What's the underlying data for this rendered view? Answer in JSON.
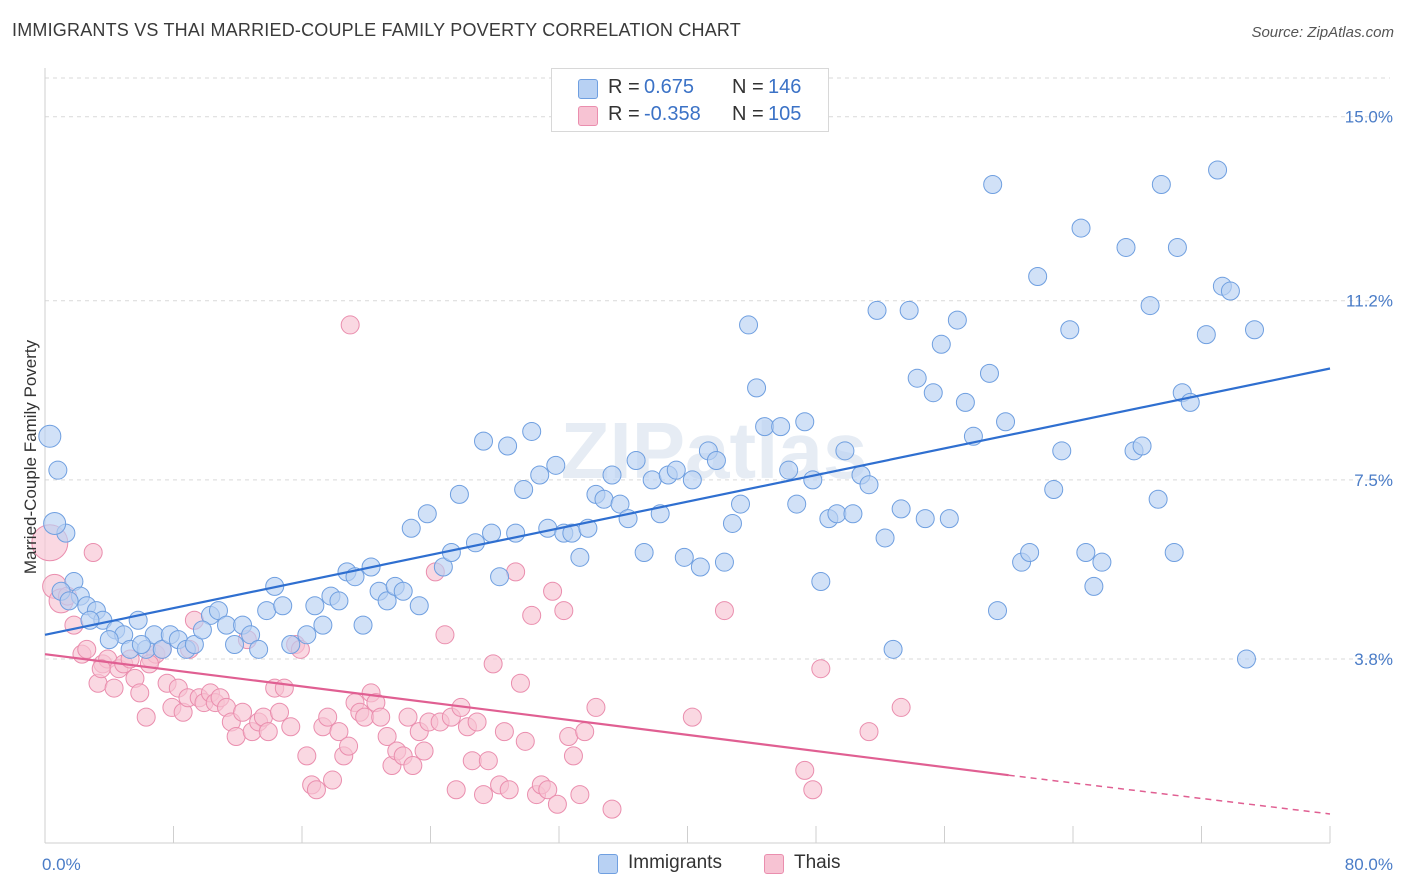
{
  "title": "IMMIGRANTS VS THAI MARRIED-COUPLE FAMILY POVERTY CORRELATION CHART",
  "source": "Source: ZipAtlas.com",
  "watermark": "ZIPatlas",
  "legend": {
    "rows": [
      {
        "r_label": "R =",
        "r_value": "0.675",
        "n_label": "N =",
        "n_value": "146"
      },
      {
        "r_label": "R =",
        "r_value": "-0.358",
        "n_label": "N =",
        "n_value": "105"
      }
    ]
  },
  "colors": {
    "immigrants_fill": "#b8d1f3",
    "immigrants_stroke": "#6f9fe0",
    "immigrants_line": "#2f6fd0",
    "thais_fill": "#f7c3d3",
    "thais_stroke": "#ea8eae",
    "thais_line": "#e05f92",
    "tick_text": "#4a7cc7",
    "grid": "#d9d9d9"
  },
  "chart_data": {
    "type": "scatter",
    "xlabel": "",
    "ylabel": "Married-Couple Family Poverty",
    "xlim": [
      0,
      80
    ],
    "ylim": [
      0,
      15.8
    ],
    "x_tick_labels": [
      "0.0%",
      "80.0%"
    ],
    "y_ticks": [
      {
        "value": 3.8,
        "label": "3.8%"
      },
      {
        "value": 7.5,
        "label": "7.5%"
      },
      {
        "value": 11.2,
        "label": "11.2%"
      },
      {
        "value": 15.0,
        "label": "15.0%"
      }
    ],
    "legend_position": "top-center",
    "series": [
      {
        "name": "Immigrants",
        "trend": {
          "x": [
            0,
            80
          ],
          "y": [
            4.3,
            9.8
          ]
        },
        "points": [
          [
            0.3,
            8.4
          ],
          [
            0.8,
            7.7
          ],
          [
            1.3,
            6.4
          ],
          [
            1.8,
            5.4
          ],
          [
            2.2,
            5.1
          ],
          [
            2.6,
            4.9
          ],
          [
            3.2,
            4.8
          ],
          [
            3.6,
            4.6
          ],
          [
            4.4,
            4.4
          ],
          [
            4.9,
            4.3
          ],
          [
            5.3,
            4.0
          ],
          [
            5.8,
            4.6
          ],
          [
            6.3,
            4.0
          ],
          [
            6.8,
            4.3
          ],
          [
            7.3,
            4.0
          ],
          [
            7.8,
            4.3
          ],
          [
            8.3,
            4.2
          ],
          [
            8.8,
            4.0
          ],
          [
            9.3,
            4.1
          ],
          [
            10.3,
            4.7
          ],
          [
            10.8,
            4.8
          ],
          [
            11.3,
            4.5
          ],
          [
            11.8,
            4.1
          ],
          [
            12.3,
            4.5
          ],
          [
            12.8,
            4.3
          ],
          [
            13.3,
            4.0
          ],
          [
            13.8,
            4.8
          ],
          [
            14.3,
            5.3
          ],
          [
            14.8,
            4.9
          ],
          [
            15.3,
            4.1
          ],
          [
            16.3,
            4.3
          ],
          [
            16.8,
            4.9
          ],
          [
            17.3,
            4.5
          ],
          [
            17.8,
            5.1
          ],
          [
            18.3,
            5.0
          ],
          [
            18.8,
            5.6
          ],
          [
            19.3,
            5.5
          ],
          [
            19.8,
            4.5
          ],
          [
            20.3,
            5.7
          ],
          [
            20.8,
            5.2
          ],
          [
            21.3,
            5.0
          ],
          [
            21.8,
            5.3
          ],
          [
            22.3,
            5.2
          ],
          [
            22.8,
            6.5
          ],
          [
            23.3,
            4.9
          ],
          [
            23.8,
            6.8
          ],
          [
            24.8,
            5.7
          ],
          [
            25.3,
            6.0
          ],
          [
            25.8,
            7.2
          ],
          [
            26.8,
            6.2
          ],
          [
            27.3,
            8.3
          ],
          [
            27.8,
            6.4
          ],
          [
            28.3,
            5.5
          ],
          [
            28.8,
            8.2
          ],
          [
            29.3,
            6.4
          ],
          [
            29.8,
            7.3
          ],
          [
            30.3,
            8.5
          ],
          [
            30.8,
            7.6
          ],
          [
            31.3,
            6.5
          ],
          [
            31.8,
            7.8
          ],
          [
            32.3,
            6.4
          ],
          [
            32.8,
            6.4
          ],
          [
            33.3,
            5.9
          ],
          [
            33.8,
            6.5
          ],
          [
            34.3,
            7.2
          ],
          [
            34.8,
            7.1
          ],
          [
            35.3,
            7.6
          ],
          [
            35.8,
            7.0
          ],
          [
            36.3,
            6.7
          ],
          [
            36.8,
            7.9
          ],
          [
            37.3,
            6.0
          ],
          [
            37.8,
            7.5
          ],
          [
            38.3,
            6.8
          ],
          [
            38.8,
            7.6
          ],
          [
            39.3,
            7.7
          ],
          [
            39.8,
            5.9
          ],
          [
            40.3,
            7.5
          ],
          [
            40.8,
            5.7
          ],
          [
            41.3,
            8.1
          ],
          [
            41.8,
            7.9
          ],
          [
            42.3,
            5.8
          ],
          [
            42.8,
            6.6
          ],
          [
            43.3,
            7.0
          ],
          [
            43.8,
            10.7
          ],
          [
            44.3,
            9.4
          ],
          [
            44.8,
            8.6
          ],
          [
            45.8,
            8.6
          ],
          [
            46.3,
            7.7
          ],
          [
            46.8,
            7.0
          ],
          [
            47.3,
            8.7
          ],
          [
            47.8,
            7.5
          ],
          [
            48.3,
            5.4
          ],
          [
            48.8,
            6.7
          ],
          [
            49.3,
            6.8
          ],
          [
            49.8,
            8.1
          ],
          [
            50.3,
            6.8
          ],
          [
            50.8,
            7.6
          ],
          [
            51.3,
            7.4
          ],
          [
            51.8,
            11.0
          ],
          [
            52.3,
            6.3
          ],
          [
            52.8,
            4.0
          ],
          [
            53.3,
            6.9
          ],
          [
            53.8,
            11.0
          ],
          [
            54.3,
            9.6
          ],
          [
            54.8,
            6.7
          ],
          [
            55.3,
            9.3
          ],
          [
            55.8,
            10.3
          ],
          [
            56.3,
            6.7
          ],
          [
            56.8,
            10.8
          ],
          [
            57.3,
            9.1
          ],
          [
            57.8,
            8.4
          ],
          [
            58.8,
            9.7
          ],
          [
            59.3,
            4.8
          ],
          [
            59.8,
            8.7
          ],
          [
            60.8,
            5.8
          ],
          [
            61.3,
            6.0
          ],
          [
            61.8,
            11.7
          ],
          [
            62.8,
            7.3
          ],
          [
            63.3,
            8.1
          ],
          [
            63.8,
            10.6
          ],
          [
            64.8,
            6.0
          ],
          [
            65.3,
            5.3
          ],
          [
            65.8,
            5.8
          ],
          [
            67.3,
            12.3
          ],
          [
            67.8,
            8.1
          ],
          [
            68.3,
            8.2
          ],
          [
            68.8,
            11.1
          ],
          [
            69.3,
            7.1
          ],
          [
            70.3,
            6.0
          ],
          [
            70.8,
            9.3
          ],
          [
            71.3,
            9.1
          ],
          [
            72.3,
            10.5
          ],
          [
            73.3,
            11.5
          ],
          [
            73.8,
            11.4
          ],
          [
            74.8,
            3.8
          ],
          [
            75.3,
            10.6
          ],
          [
            59.0,
            13.6
          ],
          [
            69.5,
            13.6
          ],
          [
            73.0,
            13.9
          ],
          [
            70.5,
            12.3
          ],
          [
            64.5,
            12.7
          ],
          [
            0.6,
            6.6
          ],
          [
            1.0,
            5.2
          ],
          [
            1.5,
            5.0
          ],
          [
            2.8,
            4.6
          ],
          [
            4.0,
            4.2
          ],
          [
            6.0,
            4.1
          ],
          [
            9.8,
            4.4
          ]
        ]
      },
      {
        "name": "Thais",
        "trend": {
          "x": [
            0,
            60
          ],
          "y": [
            3.9,
            1.4
          ]
        },
        "trend_dashed": {
          "x": [
            60,
            80
          ],
          "y": [
            1.4,
            0.6
          ]
        },
        "points": [
          [
            0.3,
            6.2
          ],
          [
            0.6,
            5.3
          ],
          [
            1.0,
            5.0
          ],
          [
            1.4,
            5.1
          ],
          [
            1.8,
            4.5
          ],
          [
            2.3,
            3.9
          ],
          [
            2.6,
            4.0
          ],
          [
            3.0,
            6.0
          ],
          [
            3.3,
            3.3
          ],
          [
            3.6,
            3.7
          ],
          [
            3.9,
            3.8
          ],
          [
            4.3,
            3.2
          ],
          [
            4.6,
            3.6
          ],
          [
            4.9,
            3.7
          ],
          [
            5.3,
            3.8
          ],
          [
            5.6,
            3.4
          ],
          [
            5.9,
            3.1
          ],
          [
            6.3,
            2.6
          ],
          [
            6.6,
            3.8
          ],
          [
            6.9,
            3.9
          ],
          [
            7.3,
            4.0
          ],
          [
            7.6,
            3.3
          ],
          [
            7.9,
            2.8
          ],
          [
            8.3,
            3.2
          ],
          [
            8.6,
            2.7
          ],
          [
            8.9,
            3.0
          ],
          [
            9.3,
            4.6
          ],
          [
            9.6,
            3.0
          ],
          [
            9.9,
            2.9
          ],
          [
            10.3,
            3.1
          ],
          [
            10.6,
            2.9
          ],
          [
            10.9,
            3.0
          ],
          [
            11.3,
            2.8
          ],
          [
            11.6,
            2.5
          ],
          [
            11.9,
            2.2
          ],
          [
            12.3,
            2.7
          ],
          [
            12.6,
            4.2
          ],
          [
            12.9,
            2.3
          ],
          [
            13.3,
            2.5
          ],
          [
            13.6,
            2.6
          ],
          [
            13.9,
            2.3
          ],
          [
            14.3,
            3.2
          ],
          [
            14.6,
            2.7
          ],
          [
            14.9,
            3.2
          ],
          [
            15.3,
            2.4
          ],
          [
            15.6,
            4.1
          ],
          [
            15.9,
            4.0
          ],
          [
            16.3,
            1.8
          ],
          [
            16.6,
            1.2
          ],
          [
            16.9,
            1.1
          ],
          [
            17.3,
            2.4
          ],
          [
            17.6,
            2.6
          ],
          [
            17.9,
            1.3
          ],
          [
            18.3,
            2.3
          ],
          [
            18.6,
            1.8
          ],
          [
            18.9,
            2.0
          ],
          [
            19.3,
            2.9
          ],
          [
            19.6,
            2.7
          ],
          [
            19.9,
            2.6
          ],
          [
            20.3,
            3.1
          ],
          [
            20.6,
            2.9
          ],
          [
            20.9,
            2.6
          ],
          [
            21.3,
            2.2
          ],
          [
            21.6,
            1.6
          ],
          [
            21.9,
            1.9
          ],
          [
            22.3,
            1.8
          ],
          [
            22.6,
            2.6
          ],
          [
            22.9,
            1.6
          ],
          [
            23.3,
            2.3
          ],
          [
            23.6,
            1.9
          ],
          [
            23.9,
            2.5
          ],
          [
            24.3,
            5.6
          ],
          [
            24.6,
            2.5
          ],
          [
            24.9,
            4.3
          ],
          [
            25.3,
            2.6
          ],
          [
            25.6,
            1.1
          ],
          [
            25.9,
            2.8
          ],
          [
            26.3,
            2.4
          ],
          [
            26.6,
            1.7
          ],
          [
            26.9,
            2.5
          ],
          [
            27.3,
            1.0
          ],
          [
            27.6,
            1.7
          ],
          [
            27.9,
            3.7
          ],
          [
            28.3,
            1.2
          ],
          [
            28.6,
            2.3
          ],
          [
            28.9,
            1.1
          ],
          [
            29.3,
            5.6
          ],
          [
            29.6,
            3.3
          ],
          [
            29.9,
            2.1
          ],
          [
            30.3,
            4.7
          ],
          [
            30.6,
            1.0
          ],
          [
            30.9,
            1.2
          ],
          [
            31.3,
            1.1
          ],
          [
            31.6,
            5.2
          ],
          [
            31.9,
            0.8
          ],
          [
            32.3,
            4.8
          ],
          [
            32.6,
            2.2
          ],
          [
            32.9,
            1.8
          ],
          [
            33.3,
            1.0
          ],
          [
            33.6,
            2.3
          ],
          [
            34.3,
            2.8
          ],
          [
            35.3,
            0.7
          ],
          [
            40.3,
            2.6
          ],
          [
            42.3,
            4.8
          ],
          [
            47.3,
            1.5
          ],
          [
            47.8,
            1.1
          ],
          [
            48.3,
            3.6
          ],
          [
            51.3,
            2.3
          ],
          [
            53.3,
            2.8
          ],
          [
            9.0,
            4.0
          ],
          [
            19.0,
            10.7
          ],
          [
            3.5,
            3.6
          ],
          [
            6.5,
            3.7
          ]
        ]
      }
    ]
  },
  "bottom_legend": [
    {
      "label": "Immigrants"
    },
    {
      "label": "Thais"
    }
  ]
}
